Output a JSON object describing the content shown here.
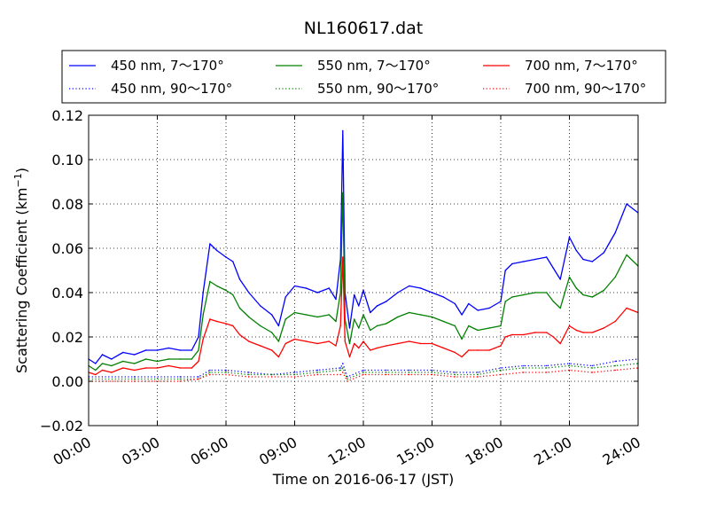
{
  "chart_data": {
    "type": "line",
    "title": "NL160617.dat",
    "xlabel": "Time on 2016-06-17 (JST)",
    "ylabel_main": "Scattering Coefficient (km",
    "ylabel_sup": "−1",
    "ylabel_close": ")",
    "xlim_hours": [
      0,
      24
    ],
    "ylim": [
      -0.02,
      0.12
    ],
    "x_ticks": [
      {
        "hour": 0,
        "label": "00:00"
      },
      {
        "hour": 3,
        "label": "03:00"
      },
      {
        "hour": 6,
        "label": "06:00"
      },
      {
        "hour": 9,
        "label": "09:00"
      },
      {
        "hour": 12,
        "label": "12:00"
      },
      {
        "hour": 15,
        "label": "15:00"
      },
      {
        "hour": 18,
        "label": "18:00"
      },
      {
        "hour": 21,
        "label": "21:00"
      },
      {
        "hour": 24,
        "label": "24:00"
      }
    ],
    "y_ticks": [
      {
        "value": -0.02,
        "label": "−0.02"
      },
      {
        "value": 0.0,
        "label": "0.00"
      },
      {
        "value": 0.02,
        "label": "0.02"
      },
      {
        "value": 0.04,
        "label": "0.04"
      },
      {
        "value": 0.06,
        "label": "0.06"
      },
      {
        "value": 0.08,
        "label": "0.08"
      },
      {
        "value": 0.1,
        "label": "0.10"
      },
      {
        "value": 0.12,
        "label": "0.12"
      }
    ],
    "grid": true,
    "legend_position": "top, above plot, 3 columns",
    "series": [
      {
        "name": "450 nm, 7～170°",
        "color": "#0000ff",
        "style": "solid",
        "hours": [
          0,
          0.3,
          0.6,
          1,
          1.5,
          2,
          2.5,
          3,
          3.5,
          4,
          4.5,
          4.8,
          5,
          5.3,
          5.6,
          6,
          6.3,
          6.6,
          7,
          7.5,
          8,
          8.3,
          8.6,
          9,
          9.5,
          10,
          10.5,
          10.8,
          11,
          11.1,
          11.2,
          11.4,
          11.6,
          11.8,
          12,
          12.3,
          12.6,
          13,
          13.5,
          14,
          14.5,
          15,
          15.5,
          16,
          16.3,
          16.6,
          17,
          17.5,
          18,
          18.2,
          18.5,
          19,
          19.5,
          20,
          20.3,
          20.6,
          21,
          21.3,
          21.6,
          22,
          22.5,
          23,
          23.5,
          24
        ],
        "values": [
          0.01,
          0.008,
          0.012,
          0.01,
          0.013,
          0.012,
          0.014,
          0.014,
          0.015,
          0.014,
          0.014,
          0.02,
          0.04,
          0.062,
          0.059,
          0.056,
          0.054,
          0.046,
          0.04,
          0.034,
          0.03,
          0.025,
          0.038,
          0.043,
          0.042,
          0.04,
          0.042,
          0.037,
          0.055,
          0.113,
          0.04,
          0.024,
          0.039,
          0.034,
          0.041,
          0.031,
          0.034,
          0.036,
          0.04,
          0.043,
          0.042,
          0.04,
          0.038,
          0.035,
          0.03,
          0.035,
          0.032,
          0.033,
          0.036,
          0.05,
          0.053,
          0.054,
          0.055,
          0.056,
          0.051,
          0.046,
          0.065,
          0.059,
          0.055,
          0.054,
          0.058,
          0.067,
          0.08,
          0.076
        ]
      },
      {
        "name": "550 nm, 7～170°",
        "color": "#008000",
        "style": "solid",
        "hours": [
          0,
          0.3,
          0.6,
          1,
          1.5,
          2,
          2.5,
          3,
          3.5,
          4,
          4.5,
          4.8,
          5,
          5.3,
          5.6,
          6,
          6.3,
          6.6,
          7,
          7.5,
          8,
          8.3,
          8.6,
          9,
          9.5,
          10,
          10.5,
          10.8,
          11,
          11.1,
          11.2,
          11.4,
          11.6,
          11.8,
          12,
          12.3,
          12.6,
          13,
          13.5,
          14,
          14.5,
          15,
          15.5,
          16,
          16.3,
          16.6,
          17,
          17.5,
          18,
          18.2,
          18.5,
          19,
          19.5,
          20,
          20.3,
          20.6,
          21,
          21.3,
          21.6,
          22,
          22.5,
          23,
          23.5,
          24
        ],
        "values": [
          0.007,
          0.005,
          0.008,
          0.007,
          0.009,
          0.008,
          0.01,
          0.009,
          0.01,
          0.01,
          0.01,
          0.014,
          0.03,
          0.045,
          0.043,
          0.041,
          0.039,
          0.033,
          0.029,
          0.025,
          0.022,
          0.018,
          0.028,
          0.031,
          0.03,
          0.029,
          0.03,
          0.027,
          0.04,
          0.085,
          0.028,
          0.017,
          0.028,
          0.024,
          0.03,
          0.023,
          0.025,
          0.026,
          0.029,
          0.031,
          0.03,
          0.029,
          0.027,
          0.025,
          0.019,
          0.025,
          0.023,
          0.024,
          0.025,
          0.036,
          0.038,
          0.039,
          0.04,
          0.04,
          0.036,
          0.033,
          0.047,
          0.042,
          0.039,
          0.038,
          0.041,
          0.047,
          0.057,
          0.052
        ]
      },
      {
        "name": "700 nm, 7～170°",
        "color": "#ff0000",
        "style": "solid",
        "hours": [
          0,
          0.3,
          0.6,
          1,
          1.5,
          2,
          2.5,
          3,
          3.5,
          4,
          4.5,
          4.8,
          5,
          5.3,
          5.6,
          6,
          6.3,
          6.6,
          7,
          7.5,
          8,
          8.3,
          8.6,
          9,
          9.5,
          10,
          10.5,
          10.8,
          11,
          11.1,
          11.2,
          11.4,
          11.6,
          11.8,
          12,
          12.3,
          12.6,
          13,
          13.5,
          14,
          14.5,
          15,
          15.5,
          16,
          16.3,
          16.6,
          17,
          17.5,
          18,
          18.2,
          18.5,
          19,
          19.5,
          20,
          20.3,
          20.6,
          21,
          21.3,
          21.6,
          22,
          22.5,
          23,
          23.5,
          24
        ],
        "values": [
          0.004,
          0.003,
          0.005,
          0.004,
          0.006,
          0.005,
          0.006,
          0.006,
          0.007,
          0.006,
          0.006,
          0.009,
          0.019,
          0.028,
          0.027,
          0.026,
          0.025,
          0.021,
          0.018,
          0.016,
          0.014,
          0.011,
          0.017,
          0.019,
          0.018,
          0.017,
          0.018,
          0.016,
          0.025,
          0.056,
          0.018,
          0.011,
          0.017,
          0.015,
          0.018,
          0.014,
          0.015,
          0.016,
          0.017,
          0.018,
          0.017,
          0.017,
          0.015,
          0.013,
          0.011,
          0.014,
          0.014,
          0.014,
          0.016,
          0.02,
          0.021,
          0.021,
          0.022,
          0.022,
          0.02,
          0.017,
          0.025,
          0.023,
          0.022,
          0.022,
          0.024,
          0.027,
          0.033,
          0.031
        ]
      },
      {
        "name": "450 nm, 90～170°",
        "color": "#0000ff",
        "style": "dotted",
        "hours": [
          0,
          2,
          4,
          4.8,
          5.3,
          6,
          7,
          8,
          9,
          10,
          11,
          11.1,
          11.3,
          12,
          13,
          14,
          15,
          16,
          17,
          18,
          19,
          20,
          21,
          22,
          23,
          24
        ],
        "values": [
          0.002,
          0.002,
          0.002,
          0.002,
          0.005,
          0.005,
          0.004,
          0.003,
          0.004,
          0.005,
          0.006,
          0.008,
          0.002,
          0.005,
          0.005,
          0.005,
          0.005,
          0.004,
          0.004,
          0.006,
          0.007,
          0.007,
          0.008,
          0.007,
          0.009,
          0.01
        ]
      },
      {
        "name": "550 nm, 90～170°",
        "color": "#008000",
        "style": "dotted",
        "hours": [
          0,
          2,
          4,
          4.8,
          5.3,
          6,
          7,
          8,
          9,
          10,
          11,
          11.1,
          11.3,
          12,
          13,
          14,
          15,
          16,
          17,
          18,
          19,
          20,
          21,
          22,
          23,
          24
        ],
        "values": [
          0.001,
          0.001,
          0.001,
          0.001,
          0.004,
          0.004,
          0.003,
          0.003,
          0.003,
          0.004,
          0.005,
          0.006,
          0.001,
          0.004,
          0.004,
          0.004,
          0.004,
          0.003,
          0.003,
          0.005,
          0.006,
          0.006,
          0.007,
          0.006,
          0.007,
          0.008
        ]
      },
      {
        "name": "700 nm, 90～170°",
        "color": "#ff0000",
        "style": "dotted",
        "hours": [
          0,
          2,
          4,
          4.8,
          5.3,
          6,
          7,
          8,
          9,
          10,
          11,
          11.1,
          11.3,
          12,
          13,
          14,
          15,
          16,
          17,
          18,
          19,
          20,
          21,
          22,
          23,
          24
        ],
        "values": [
          0.0,
          0.0,
          0.0,
          0.001,
          0.003,
          0.003,
          0.002,
          0.002,
          0.002,
          0.003,
          0.003,
          0.004,
          0.0,
          0.003,
          0.003,
          0.003,
          0.003,
          0.002,
          0.002,
          0.003,
          0.004,
          0.004,
          0.005,
          0.004,
          0.005,
          0.006
        ]
      }
    ]
  }
}
